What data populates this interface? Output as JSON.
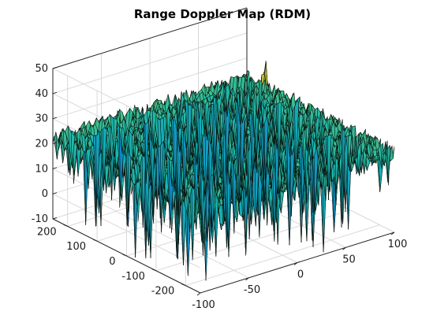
{
  "chart_data": {
    "type": "surface",
    "title": "Range Doppler Map (RDM)",
    "xlabel": "",
    "ylabel": "",
    "zlabel": "",
    "xlim": [
      -100,
      100
    ],
    "ylim": [
      -250,
      250
    ],
    "zlim": [
      -10,
      50
    ],
    "x_ticks": [
      -100,
      -50,
      0,
      50,
      100
    ],
    "y_ticks": [
      -200,
      -100,
      0,
      100,
      200
    ],
    "z_ticks": [
      -10,
      0,
      10,
      20,
      30,
      40,
      50
    ],
    "noise_floor_db": 22,
    "noise_min_db": -10,
    "target": {
      "range": 52,
      "doppler": 32,
      "peak_db": 47
    },
    "grid": true,
    "colormap": "parula"
  }
}
